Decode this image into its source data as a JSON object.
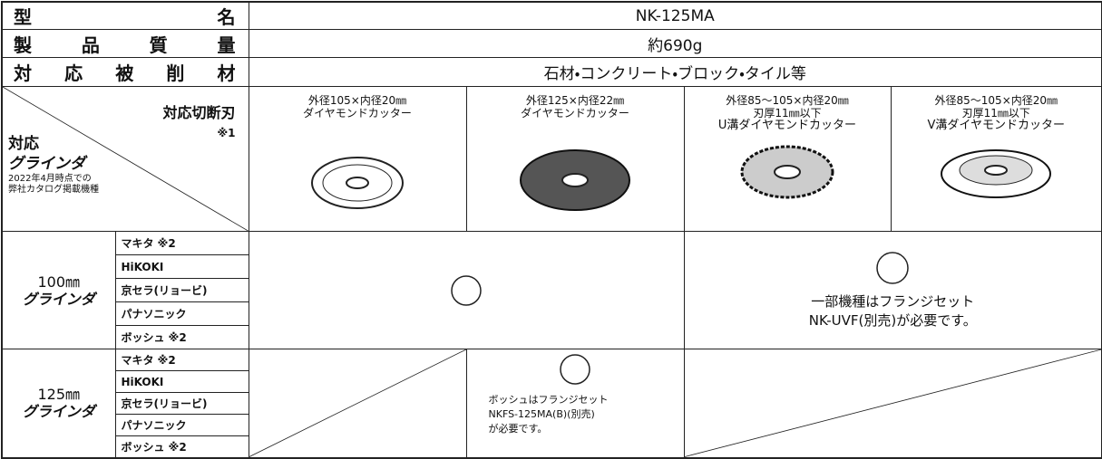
{
  "spec_rows": [
    {
      "label": "型名",
      "value": "NK-125MA"
    },
    {
      "label": "製品質量",
      "value": "約690g"
    },
    {
      "label": "対応被削材",
      "value": "石材・コンクリート・ブロック・タイル等"
    }
  ],
  "header_cell": {
    "blade_label": "対応切断刃",
    "blade_note": "※1",
    "grinder_label": "対応",
    "grinder_label_2": "グラインダ",
    "catalog_note": [
      "2022年4月時点での",
      "弊社カタログ掲載機種"
    ]
  },
  "blades": [
    {
      "lines": [
        "外径105×内径20㎜",
        "ダイヤモンドカッター"
      ]
    },
    {
      "lines": [
        "外径125×内径22㎜",
        "ダイヤモンドカッター"
      ]
    },
    {
      "lines": [
        "外径85～105×内径20㎜",
        "刃厚11㎜以下",
        "U溝ダイヤモンドカッター"
      ]
    },
    {
      "lines": [
        "外径85～105×内径20㎜",
        "刃厚11㎜以下",
        "V溝ダイヤモンドカッター"
      ]
    }
  ],
  "groups": [
    {
      "size": "100㎜",
      "label": "グラインダ",
      "makers": [
        "マキタ ※2",
        "HiKOKI",
        "京セラ(リョービ)",
        "パナソニック",
        "ボッシュ ※2"
      ],
      "compat_note": [
        "一部機種はフランジセット",
        "NK-UVF(別売)が必要です。"
      ]
    },
    {
      "size": "125㎜",
      "label": "グラインダ",
      "makers": [
        "マキタ ※2",
        "HiKOKI",
        "京セラ(リョービ)",
        "パナソニック",
        "ボッシュ ※2"
      ],
      "compat_note": [
        "ボッシュはフランジセット",
        "NKFS-125MA(B)(別売)",
        "が必要です。"
      ]
    }
  ]
}
